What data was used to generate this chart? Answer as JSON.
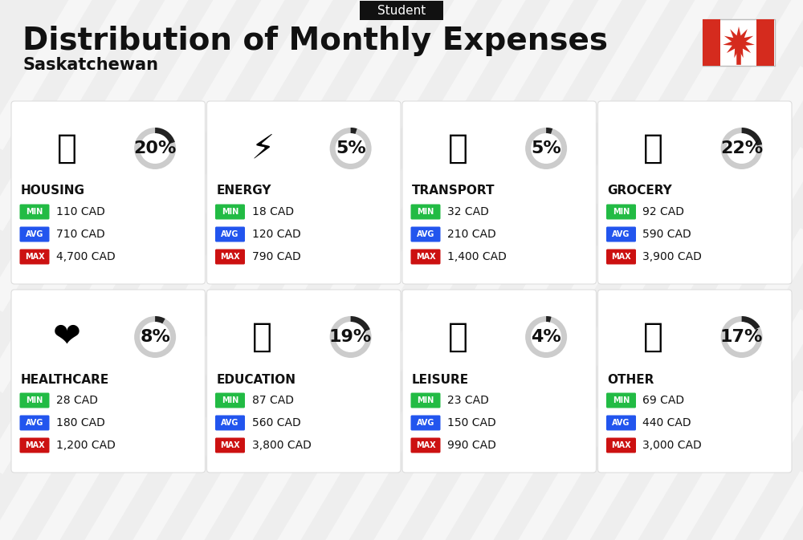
{
  "title": "Distribution of Monthly Expenses",
  "subtitle": "Saskatchewan",
  "tag": "Student",
  "bg_color": "#eeeeee",
  "categories": [
    {
      "name": "HOUSING",
      "percent": 20,
      "min": "110 CAD",
      "avg": "710 CAD",
      "max": "4,700 CAD",
      "row": 0,
      "col": 0
    },
    {
      "name": "ENERGY",
      "percent": 5,
      "min": "18 CAD",
      "avg": "120 CAD",
      "max": "790 CAD",
      "row": 0,
      "col": 1
    },
    {
      "name": "TRANSPORT",
      "percent": 5,
      "min": "32 CAD",
      "avg": "210 CAD",
      "max": "1,400 CAD",
      "row": 0,
      "col": 2
    },
    {
      "name": "GROCERY",
      "percent": 22,
      "min": "92 CAD",
      "avg": "590 CAD",
      "max": "3,900 CAD",
      "row": 0,
      "col": 3
    },
    {
      "name": "HEALTHCARE",
      "percent": 8,
      "min": "28 CAD",
      "avg": "180 CAD",
      "max": "1,200 CAD",
      "row": 1,
      "col": 0
    },
    {
      "name": "EDUCATION",
      "percent": 19,
      "min": "87 CAD",
      "avg": "560 CAD",
      "max": "3,800 CAD",
      "row": 1,
      "col": 1
    },
    {
      "name": "LEISURE",
      "percent": 4,
      "min": "23 CAD",
      "avg": "150 CAD",
      "max": "990 CAD",
      "row": 1,
      "col": 2
    },
    {
      "name": "OTHER",
      "percent": 17,
      "min": "69 CAD",
      "avg": "440 CAD",
      "max": "3,000 CAD",
      "row": 1,
      "col": 3
    }
  ],
  "color_min": "#22bb44",
  "color_avg": "#2255ee",
  "color_max": "#cc1111",
  "arc_dark": "#222222",
  "arc_light": "#cccccc",
  "card_bg": "#ffffff",
  "flag_red": "#d52b1e",
  "stripe_color": "#dddddd",
  "title_fs": 28,
  "subtitle_fs": 15,
  "tag_fs": 11,
  "cat_fs": 11,
  "val_fs": 10,
  "pct_fs": 16,
  "badge_fs": 7
}
